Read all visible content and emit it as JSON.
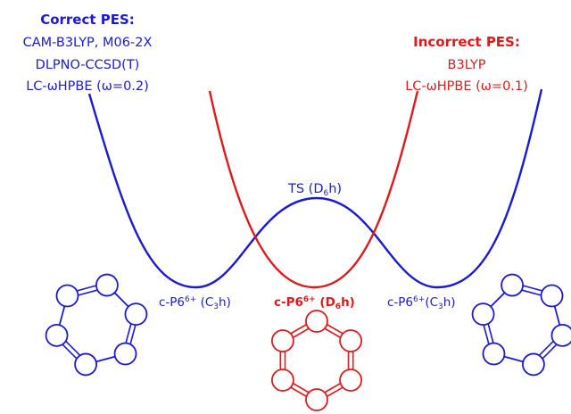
{
  "colors": {
    "correct": "#1a1ad6",
    "incorrect": "#e01a1a"
  },
  "correct_pes": {
    "title": "Correct PES:",
    "methods": [
      "CAM-B3LYP, M06-2X",
      "DLPNO-CCSD(T)",
      "LC-ωHPBE (ω=0.2)"
    ]
  },
  "incorrect_pes": {
    "title": "Incorrect PES:",
    "methods": [
      "B3LYP",
      "LC-ωHPBE (ω=0.1)"
    ]
  },
  "labels": {
    "ts": {
      "main": "TS (D",
      "sub": "6",
      "tail": "h)"
    },
    "left_min": {
      "main": "c-P6",
      "sup": "6+",
      "mid": " (C",
      "sub": "3",
      "tail": "h)"
    },
    "center_min": {
      "main": "c-P6",
      "sup": "6+",
      "mid": " (D",
      "sub": "6",
      "tail": "h)"
    },
    "right_min": {
      "main": "c-P6",
      "sup": "6+",
      "mid": "(C",
      "sub": "3",
      "tail": "h)"
    }
  },
  "molecules": [
    {
      "name": "left",
      "symmetry": "C3h",
      "color": "correct",
      "bonding": "alternating"
    },
    {
      "name": "center",
      "symmetry": "D6h",
      "color": "incorrect",
      "bonding": "delocalized"
    },
    {
      "name": "right",
      "symmetry": "C3h",
      "color": "correct",
      "bonding": "alternating"
    }
  ]
}
